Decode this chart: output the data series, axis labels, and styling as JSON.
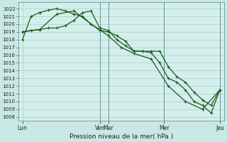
{
  "xlabel": "Pression niveau de la mer( hPa )",
  "bg_color": "#c8e8e4",
  "plot_bg": "#d4eeec",
  "grid_color": "#a0c8c4",
  "line_color": "#1a5c1a",
  "ylim": [
    1007.5,
    1022.8
  ],
  "yticks": [
    1008,
    1009,
    1010,
    1011,
    1012,
    1013,
    1014,
    1015,
    1016,
    1017,
    1018,
    1019,
    1020,
    1021,
    1022
  ],
  "xlim": [
    0,
    24
  ],
  "xtick_positions": [
    0.5,
    9.5,
    10.5,
    17.0,
    23.5
  ],
  "xtick_labels": [
    "Lun",
    "Ven",
    "Mar",
    "Mer",
    "Jeu"
  ],
  "vlines": [
    9.5,
    10.5,
    17.0,
    23.5
  ],
  "line1_x": [
    0.5,
    1.5,
    2.5,
    3.5,
    4.5,
    5.5,
    6.5,
    7.5,
    8.5,
    9.5,
    10.5,
    11.5,
    12.5,
    13.5,
    14.5,
    15.5,
    16.5,
    17.5,
    18.5,
    19.5,
    20.5,
    21.5,
    22.5,
    23.5
  ],
  "line1_y": [
    1018.0,
    1021.0,
    1021.5,
    1021.8,
    1022.0,
    1021.7,
    1021.3,
    1021.0,
    1020.0,
    1019.2,
    1019.0,
    1018.5,
    1017.8,
    1016.5,
    1016.5,
    1016.5,
    1016.5,
    1014.5,
    1013.2,
    1012.5,
    1011.2,
    1010.2,
    1009.5,
    1011.5
  ],
  "line2_x": [
    0.5,
    1.5,
    2.5,
    3.5,
    4.5,
    5.5,
    6.5,
    7.5,
    8.5,
    9.5,
    10.5,
    11.5,
    12.5,
    13.5,
    14.5,
    15.5,
    16.5,
    17.5,
    18.5,
    19.5,
    20.5,
    21.5,
    22.5,
    23.5
  ],
  "line2_y": [
    1019.0,
    1019.2,
    1019.3,
    1019.5,
    1019.5,
    1019.8,
    1020.5,
    1021.5,
    1021.7,
    1019.5,
    1019.2,
    1018.0,
    1017.2,
    1016.5,
    1016.5,
    1016.3,
    1015.0,
    1013.0,
    1012.5,
    1011.5,
    1010.0,
    1009.5,
    1008.5,
    1011.5
  ],
  "line3_x": [
    0.5,
    2.5,
    4.5,
    6.5,
    8.5,
    9.5,
    10.5,
    12.0,
    13.5,
    15.5,
    17.5,
    19.5,
    21.5,
    23.5
  ],
  "line3_y": [
    1019.0,
    1019.3,
    1021.3,
    1021.7,
    1020.0,
    1019.3,
    1018.5,
    1017.0,
    1016.2,
    1015.5,
    1012.0,
    1010.0,
    1009.0,
    1011.5
  ]
}
